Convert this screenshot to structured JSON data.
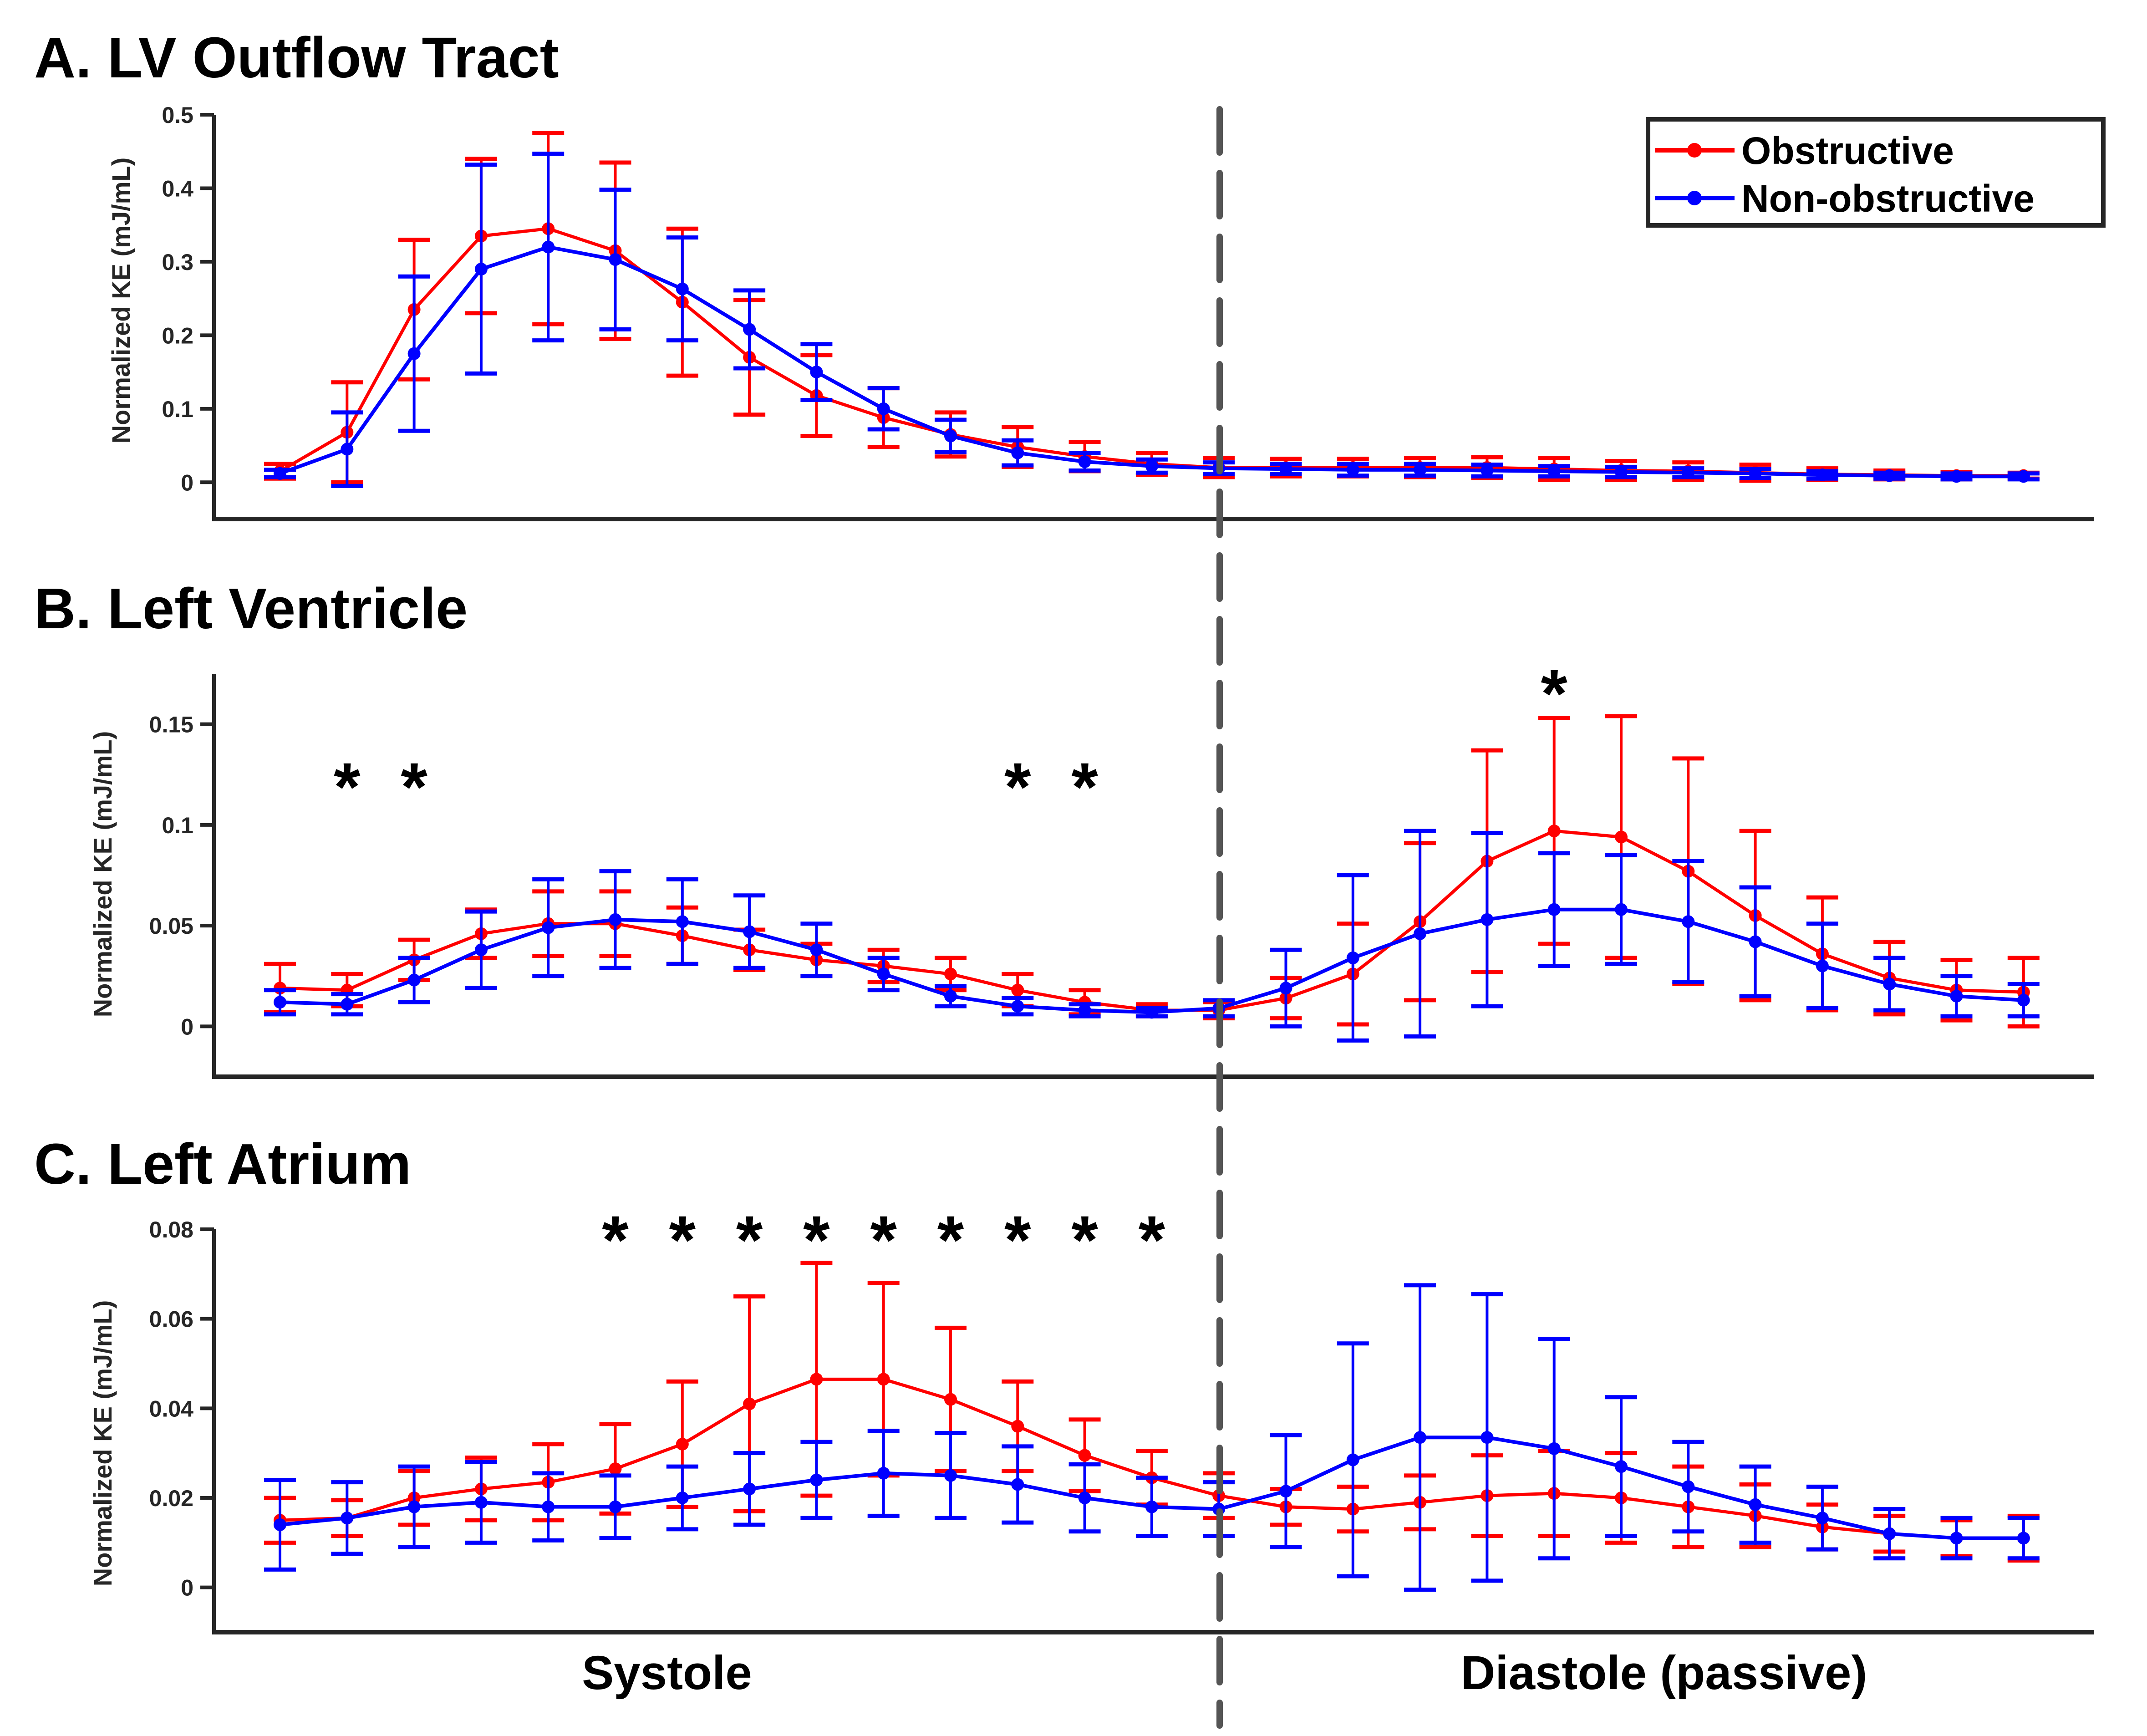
{
  "chart_data": [
    {
      "type": "line",
      "title": "A. LV Outflow Tract",
      "xlabel": "",
      "ylabel": "Normalized KE (mJ/mL)",
      "ylim": [
        -0.05,
        0.5
      ],
      "yticks": [
        0,
        0.1,
        0.2,
        0.3,
        0.4,
        0.5
      ],
      "ytick_labels": [
        "0",
        "0.1",
        "0.2",
        "0.3",
        "0.4",
        "0.5"
      ],
      "x": [
        1,
        2,
        3,
        4,
        5,
        6,
        7,
        8,
        9,
        10,
        11,
        12,
        13,
        14,
        15,
        16,
        17,
        18,
        19,
        20,
        21,
        22,
        23,
        24,
        25,
        26,
        27
      ],
      "divider_at_x": 15,
      "grid": false,
      "legend_position": "top-right",
      "significant_x": [],
      "series": [
        {
          "name": "Obstructive",
          "color": "#ff0000",
          "values": [
            0.015,
            0.068,
            0.235,
            0.335,
            0.345,
            0.315,
            0.245,
            0.17,
            0.118,
            0.088,
            0.065,
            0.048,
            0.035,
            0.025,
            0.02,
            0.02,
            0.02,
            0.02,
            0.02,
            0.018,
            0.016,
            0.015,
            0.013,
            0.011,
            0.01,
            0.009,
            0.009
          ],
          "errors": [
            0.01,
            0.068,
            0.095,
            0.105,
            0.13,
            0.12,
            0.1,
            0.078,
            0.055,
            0.04,
            0.03,
            0.027,
            0.02,
            0.015,
            0.013,
            0.012,
            0.012,
            0.013,
            0.014,
            0.015,
            0.013,
            0.012,
            0.011,
            0.008,
            0.006,
            0.005,
            0.004
          ]
        },
        {
          "name": "Non-obstructive",
          "color": "#0000ff",
          "values": [
            0.012,
            0.045,
            0.175,
            0.29,
            0.32,
            0.303,
            0.263,
            0.208,
            0.15,
            0.1,
            0.063,
            0.04,
            0.028,
            0.022,
            0.019,
            0.018,
            0.017,
            0.017,
            0.016,
            0.015,
            0.014,
            0.013,
            0.012,
            0.01,
            0.009,
            0.008,
            0.008
          ],
          "errors": [
            0.005,
            0.05,
            0.105,
            0.142,
            0.127,
            0.095,
            0.07,
            0.053,
            0.038,
            0.028,
            0.022,
            0.017,
            0.012,
            0.009,
            0.008,
            0.007,
            0.008,
            0.008,
            0.008,
            0.007,
            0.007,
            0.006,
            0.006,
            0.005,
            0.004,
            0.004,
            0.004
          ]
        }
      ]
    },
    {
      "type": "line",
      "title": "B. Left Ventricle",
      "xlabel": "",
      "ylabel": "Normalized KE (mJ/mL)",
      "ylim": [
        -0.025,
        0.175
      ],
      "yticks": [
        0,
        0.05,
        0.1,
        0.15
      ],
      "ytick_labels": [
        "0",
        "0.05",
        "0.1",
        "0.15"
      ],
      "x": [
        1,
        2,
        3,
        4,
        5,
        6,
        7,
        8,
        9,
        10,
        11,
        12,
        13,
        14,
        15,
        16,
        17,
        18,
        19,
        20,
        21,
        22,
        23,
        24,
        25,
        26,
        27
      ],
      "divider_at_x": 15,
      "grid": false,
      "significant_x": [
        2,
        3,
        12,
        13,
        20
      ],
      "significance_marker": "*",
      "series": [
        {
          "name": "Obstructive",
          "color": "#ff0000",
          "values": [
            0.019,
            0.018,
            0.033,
            0.046,
            0.051,
            0.051,
            0.045,
            0.038,
            0.033,
            0.03,
            0.026,
            0.018,
            0.012,
            0.008,
            0.008,
            0.014,
            0.026,
            0.052,
            0.082,
            0.097,
            0.094,
            0.077,
            0.055,
            0.036,
            0.024,
            0.018,
            0.017
          ],
          "errors": [
            0.012,
            0.008,
            0.01,
            0.012,
            0.016,
            0.016,
            0.014,
            0.01,
            0.008,
            0.008,
            0.008,
            0.008,
            0.006,
            0.003,
            0.004,
            0.01,
            0.025,
            0.039,
            0.055,
            0.056,
            0.06,
            0.056,
            0.042,
            0.028,
            0.018,
            0.015,
            0.017
          ]
        },
        {
          "name": "Non-obstructive",
          "color": "#0000ff",
          "values": [
            0.012,
            0.011,
            0.023,
            0.038,
            0.049,
            0.053,
            0.052,
            0.047,
            0.038,
            0.026,
            0.015,
            0.01,
            0.008,
            0.007,
            0.009,
            0.019,
            0.034,
            0.046,
            0.053,
            0.058,
            0.058,
            0.052,
            0.042,
            0.03,
            0.021,
            0.015,
            0.013
          ],
          "errors": [
            0.006,
            0.005,
            0.011,
            0.019,
            0.024,
            0.024,
            0.021,
            0.018,
            0.013,
            0.008,
            0.005,
            0.004,
            0.003,
            0.002,
            0.004,
            0.019,
            0.041,
            0.051,
            0.043,
            0.028,
            0.027,
            0.03,
            0.027,
            0.021,
            0.013,
            0.01,
            0.008
          ]
        }
      ]
    },
    {
      "type": "line",
      "title": "C. Left Atrium",
      "xlabel": "",
      "ylabel": "Normalized KE (mJ/mL)",
      "ylim": [
        -0.01,
        0.08
      ],
      "yticks": [
        0,
        0.02,
        0.04,
        0.06,
        0.08
      ],
      "ytick_labels": [
        "0",
        "0.02",
        "0.04",
        "0.06",
        "0.08"
      ],
      "x": [
        1,
        2,
        3,
        4,
        5,
        6,
        7,
        8,
        9,
        10,
        11,
        12,
        13,
        14,
        15,
        16,
        17,
        18,
        19,
        20,
        21,
        22,
        23,
        24,
        25,
        26,
        27
      ],
      "divider_at_x": 15,
      "grid": false,
      "significant_x": [
        6,
        7,
        8,
        9,
        10,
        11,
        12,
        13,
        14
      ],
      "significance_marker": "*",
      "phase_labels": [
        "Systole",
        "Diastole (passive)"
      ],
      "series": [
        {
          "name": "Obstructive",
          "color": "#ff0000",
          "values": [
            0.015,
            0.0155,
            0.02,
            0.022,
            0.0235,
            0.0265,
            0.032,
            0.041,
            0.0465,
            0.0465,
            0.042,
            0.036,
            0.0295,
            0.0245,
            0.0205,
            0.018,
            0.0175,
            0.019,
            0.0205,
            0.021,
            0.02,
            0.018,
            0.016,
            0.0135,
            0.012,
            0.011,
            0.011
          ],
          "errors": [
            0.005,
            0.004,
            0.006,
            0.007,
            0.0085,
            0.01,
            0.014,
            0.024,
            0.026,
            0.0215,
            0.016,
            0.01,
            0.008,
            0.006,
            0.005,
            0.004,
            0.005,
            0.006,
            0.009,
            0.0095,
            0.01,
            0.009,
            0.007,
            0.005,
            0.004,
            0.004,
            0.005
          ]
        },
        {
          "name": "Non-obstructive",
          "color": "#0000ff",
          "values": [
            0.014,
            0.0155,
            0.018,
            0.019,
            0.018,
            0.018,
            0.02,
            0.022,
            0.024,
            0.0255,
            0.025,
            0.023,
            0.02,
            0.018,
            0.0175,
            0.0215,
            0.0285,
            0.0335,
            0.0335,
            0.031,
            0.027,
            0.0225,
            0.0185,
            0.0155,
            0.012,
            0.011,
            0.011
          ],
          "errors": [
            0.01,
            0.008,
            0.009,
            0.009,
            0.0075,
            0.007,
            0.007,
            0.008,
            0.0085,
            0.0095,
            0.0095,
            0.0085,
            0.0075,
            0.0065,
            0.006,
            0.0125,
            0.026,
            0.034,
            0.032,
            0.0245,
            0.0155,
            0.01,
            0.0085,
            0.007,
            0.0055,
            0.0045,
            0.0045
          ]
        }
      ]
    }
  ],
  "legend": {
    "items": [
      {
        "label": "Obstructive",
        "color": "#ff0000"
      },
      {
        "label": "Non-obstructive",
        "color": "#0000ff"
      }
    ]
  },
  "phase_labels": {
    "systole": "Systole",
    "diastole": "Diastole (passive)"
  },
  "colors": {
    "axis": "#262626",
    "divider": "#555555"
  }
}
